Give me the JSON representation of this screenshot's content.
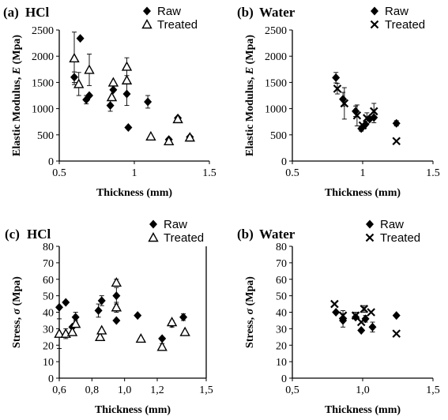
{
  "chart_data": [
    {
      "type": "scatter",
      "panel_label": "(a)",
      "title": "HCl",
      "xlabel": "Thickness (mm)",
      "ylabel_prefix": "Elastic Modulus, ",
      "ylabel_var": "E",
      "ylabel_suffix": " (Mpa)",
      "xlim": [
        0.5,
        1.5
      ],
      "ylim": [
        0,
        2500
      ],
      "xticks": [
        "0.5",
        "1",
        "1.5"
      ],
      "yticks": [
        "0",
        "500",
        "1000",
        "1500",
        "2000",
        "2500"
      ],
      "series": [
        {
          "name": "Raw",
          "marker": "diamond",
          "points": [
            {
              "x": 0.6,
              "y": 1600,
              "err": 100
            },
            {
              "x": 0.64,
              "y": 2340,
              "err": 0
            },
            {
              "x": 0.68,
              "y": 1170,
              "err": 80
            },
            {
              "x": 0.7,
              "y": 1250,
              "err": 0
            },
            {
              "x": 0.84,
              "y": 1060,
              "err": 110
            },
            {
              "x": 0.86,
              "y": 1360,
              "err": 0
            },
            {
              "x": 0.95,
              "y": 1280,
              "err": 220
            },
            {
              "x": 0.96,
              "y": 640,
              "err": 0
            },
            {
              "x": 1.09,
              "y": 1130,
              "err": 120
            },
            {
              "x": 1.23,
              "y": 410,
              "err": 0
            },
            {
              "x": 1.29,
              "y": 820,
              "err": 0
            },
            {
              "x": 1.37,
              "y": 460,
              "err": 0
            }
          ]
        },
        {
          "name": "Treated",
          "marker": "triangle",
          "points": [
            {
              "x": 0.6,
              "y": 1960,
              "err": 500
            },
            {
              "x": 0.63,
              "y": 1470,
              "err": 220
            },
            {
              "x": 0.7,
              "y": 1740,
              "err": 300
            },
            {
              "x": 0.85,
              "y": 1220,
              "err": 0
            },
            {
              "x": 0.86,
              "y": 1500,
              "err": 0
            },
            {
              "x": 0.95,
              "y": 1800,
              "err": 170
            },
            {
              "x": 0.95,
              "y": 1540,
              "err": 0
            },
            {
              "x": 1.11,
              "y": 470,
              "err": 0
            },
            {
              "x": 1.23,
              "y": 380,
              "err": 60
            },
            {
              "x": 1.29,
              "y": 800,
              "err": 0
            },
            {
              "x": 1.37,
              "y": 450,
              "err": 0
            }
          ]
        }
      ]
    },
    {
      "type": "scatter",
      "panel_label": "(b)",
      "title": "Water",
      "xlabel": "Thickness (mm)",
      "ylabel_prefix": "Elastic Modulus, ",
      "ylabel_var": "E",
      "ylabel_suffix": " (Mpa)",
      "xlim": [
        0.5,
        1.5
      ],
      "ylim": [
        0,
        2500
      ],
      "xticks": [
        "0.5",
        "1",
        "1.5"
      ],
      "yticks": [
        "0",
        "500",
        "1000",
        "1500",
        "2000",
        "2500"
      ],
      "series": [
        {
          "name": "Raw",
          "marker": "diamond",
          "points": [
            {
              "x": 0.81,
              "y": 1590,
              "err": 100
            },
            {
              "x": 0.86,
              "y": 1180,
              "err": 130
            },
            {
              "x": 0.95,
              "y": 950,
              "err": 100
            },
            {
              "x": 0.99,
              "y": 620,
              "err": 50
            },
            {
              "x": 1.02,
              "y": 700,
              "err": 0
            },
            {
              "x": 1.05,
              "y": 800,
              "err": 0
            },
            {
              "x": 1.08,
              "y": 830,
              "err": 100
            },
            {
              "x": 1.24,
              "y": 720,
              "err": 50
            }
          ]
        },
        {
          "name": "Treated",
          "marker": "x",
          "points": [
            {
              "x": 0.82,
              "y": 1380,
              "err": 100
            },
            {
              "x": 0.87,
              "y": 1100,
              "err": 300
            },
            {
              "x": 0.96,
              "y": 870,
              "err": 200
            },
            {
              "x": 1.0,
              "y": 680,
              "err": 0
            },
            {
              "x": 1.03,
              "y": 820,
              "err": 100
            },
            {
              "x": 1.08,
              "y": 950,
              "err": 150
            },
            {
              "x": 1.24,
              "y": 380,
              "err": 0
            }
          ]
        }
      ]
    },
    {
      "type": "scatter",
      "panel_label": "(c)",
      "title": "HCl",
      "xlabel": "Thickness (mm)",
      "ylabel_prefix": "Stress, ",
      "ylabel_var": "σ",
      "ylabel_suffix": " (Mpa)",
      "xlim": [
        0.6,
        1.5
      ],
      "ylim": [
        0,
        80
      ],
      "xticks": [
        "0,6",
        "0,8",
        "1,0",
        "1,2",
        "1,5"
      ],
      "yticks": [
        "0",
        "10",
        "20",
        "30",
        "40",
        "50",
        "60",
        "70",
        "80"
      ],
      "series": [
        {
          "name": "Raw",
          "marker": "diamond",
          "points": [
            {
              "x": 0.6,
              "y": 43,
              "err": 0
            },
            {
              "x": 0.64,
              "y": 46,
              "err": 0
            },
            {
              "x": 0.68,
              "y": 31,
              "err": 0
            },
            {
              "x": 0.7,
              "y": 37,
              "err": 3
            },
            {
              "x": 0.84,
              "y": 41,
              "err": 4
            },
            {
              "x": 0.86,
              "y": 47,
              "err": 3
            },
            {
              "x": 0.95,
              "y": 50,
              "err": 5
            },
            {
              "x": 0.95,
              "y": 35,
              "err": 0
            },
            {
              "x": 1.08,
              "y": 38,
              "err": 0
            },
            {
              "x": 1.23,
              "y": 24,
              "err": 0
            },
            {
              "x": 1.29,
              "y": 33,
              "err": 2
            },
            {
              "x": 1.36,
              "y": 37,
              "err": 2
            }
          ]
        },
        {
          "name": "Treated",
          "marker": "triangle",
          "points": [
            {
              "x": 0.6,
              "y": 27,
              "err": 9
            },
            {
              "x": 0.64,
              "y": 27,
              "err": 3
            },
            {
              "x": 0.68,
              "y": 28,
              "err": 2
            },
            {
              "x": 0.7,
              "y": 33,
              "err": 2
            },
            {
              "x": 0.85,
              "y": 25,
              "err": 0
            },
            {
              "x": 0.86,
              "y": 29,
              "err": 0
            },
            {
              "x": 0.95,
              "y": 58,
              "err": 2
            },
            {
              "x": 0.95,
              "y": 43,
              "err": 3
            },
            {
              "x": 1.1,
              "y": 24,
              "err": 0
            },
            {
              "x": 1.23,
              "y": 19,
              "err": 2
            },
            {
              "x": 1.29,
              "y": 34,
              "err": 0
            },
            {
              "x": 1.37,
              "y": 28,
              "err": 0
            }
          ]
        }
      ]
    },
    {
      "type": "scatter",
      "panel_label": "(b)",
      "title": "Water",
      "xlabel": "Thickness (mm)",
      "ylabel_prefix": "Stress, ",
      "ylabel_var": "σ",
      "ylabel_suffix": " (Mpa)",
      "xlim": [
        0.5,
        1.5
      ],
      "ylim": [
        0,
        80
      ],
      "xticks": [
        "0,5",
        "1,0",
        "1,5"
      ],
      "yticks": [
        "0",
        "10",
        "20",
        "30",
        "40",
        "50",
        "60",
        "70",
        "80"
      ],
      "series": [
        {
          "name": "Raw",
          "marker": "diamond",
          "points": [
            {
              "x": 0.81,
              "y": 40,
              "err": 0
            },
            {
              "x": 0.86,
              "y": 35,
              "err": 4
            },
            {
              "x": 0.95,
              "y": 37,
              "err": 0
            },
            {
              "x": 0.99,
              "y": 29,
              "err": 0
            },
            {
              "x": 1.02,
              "y": 36,
              "err": 2
            },
            {
              "x": 1.07,
              "y": 31,
              "err": 3
            },
            {
              "x": 1.24,
              "y": 38,
              "err": 0
            }
          ]
        },
        {
          "name": "Treated",
          "marker": "x",
          "points": [
            {
              "x": 0.8,
              "y": 45,
              "err": 0
            },
            {
              "x": 0.86,
              "y": 38,
              "err": 3
            },
            {
              "x": 0.95,
              "y": 38,
              "err": 2
            },
            {
              "x": 0.99,
              "y": 34,
              "err": 0
            },
            {
              "x": 1.01,
              "y": 42,
              "err": 2
            },
            {
              "x": 1.06,
              "y": 40,
              "err": 0
            },
            {
              "x": 1.24,
              "y": 27,
              "err": 0
            }
          ]
        }
      ]
    }
  ]
}
